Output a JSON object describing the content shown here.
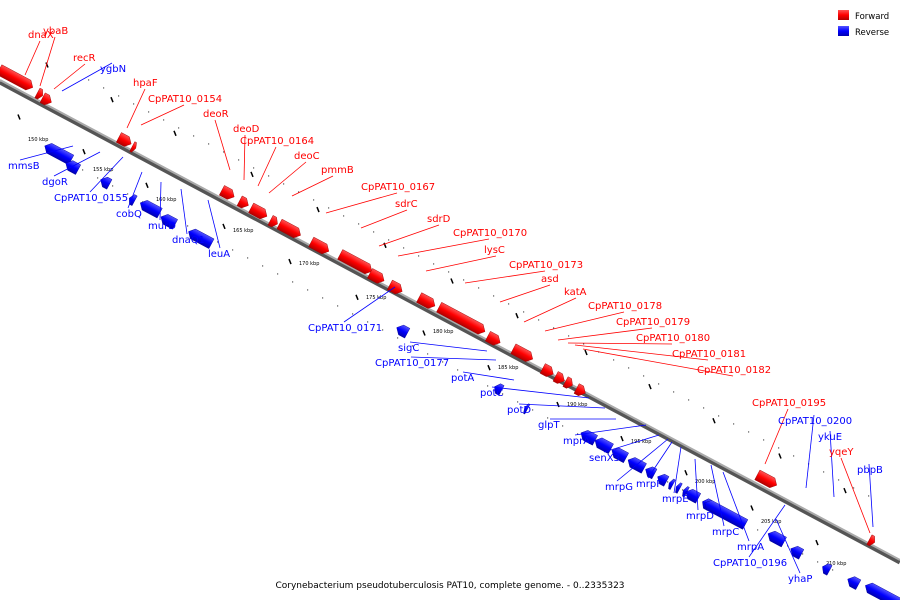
{
  "caption": "Corynebacterium pseudotuberculosis PAT10, complete genome. - 0..2335323",
  "colors": {
    "forward": "#ff0000",
    "reverse": "#0000ff",
    "axis": "#7f7f7f"
  },
  "legend": [
    {
      "label": "Forward",
      "color": "#ff0000"
    },
    {
      "label": "Reverse",
      "color": "#0000ff"
    }
  ],
  "ticks": [
    "150 kbp",
    "155 kbp",
    "160 kbp",
    "165 kbp",
    "170 kbp",
    "175 kbp",
    "180 kbp",
    "185 kbp",
    "190 kbp",
    "195 kbp",
    "200 kbp",
    "205 kbp",
    "210 kbp"
  ],
  "genes_forward": [
    "dnaX",
    "ybaB",
    "recR",
    "hpaF",
    "CpPAT10_0154",
    "deoR",
    "deoD",
    "CpPAT10_0164",
    "deoC",
    "pmmB",
    "CpPAT10_0167",
    "sdrC",
    "sdrD",
    "CpPAT10_0170",
    "lysC",
    "CpPAT10_0173",
    "asd",
    "katA",
    "CpPAT10_0178",
    "CpPAT10_0179",
    "CpPAT10_0180",
    "CpPAT10_0181",
    "CpPAT10_0182",
    "CpPAT10_0195",
    "yqeY"
  ],
  "genes_reverse": [
    "ygbN",
    "mmsB",
    "dgoR",
    "CpPAT10_0155",
    "cobQ",
    "murD",
    "dnaQ1",
    "leuA",
    "CpPAT10_0171",
    "sigC",
    "CpPAT10_0177",
    "potA",
    "potC",
    "potD",
    "glpT",
    "mprA",
    "senX3",
    "mrpG",
    "mrpF",
    "mrpE",
    "mrpD",
    "mrpC",
    "mrpA",
    "CpPAT10_0196",
    "CpPAT10_0200",
    "ykuE",
    "yhaP",
    "pbpB"
  ]
}
